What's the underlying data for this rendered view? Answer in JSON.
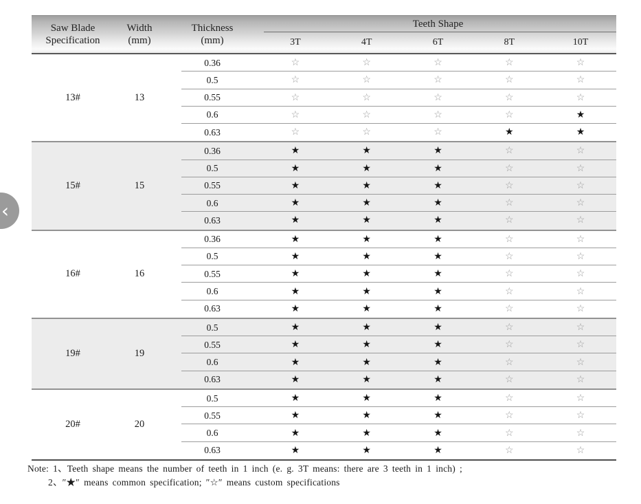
{
  "nav": {
    "prev_label": "‹"
  },
  "table": {
    "header": {
      "spec_line1": "Saw Blade",
      "spec_line2": "Specification",
      "width_line1": "Width",
      "width_line2": "(mm)",
      "thickness_line1": "Thickness",
      "thickness_line2": "(mm)",
      "teeth_shape": "Teeth Shape",
      "teeth_cols": [
        "3T",
        "4T",
        "6T",
        "8T",
        "10T"
      ]
    },
    "groups": [
      {
        "spec": "13#",
        "width": "13",
        "shaded": false,
        "rows": [
          {
            "thickness": "0.36",
            "marks": [
              "☆",
              "☆",
              "☆",
              "☆",
              "☆"
            ]
          },
          {
            "thickness": "0.5",
            "marks": [
              "☆",
              "☆",
              "☆",
              "☆",
              "☆"
            ]
          },
          {
            "thickness": "0.55",
            "marks": [
              "☆",
              "☆",
              "☆",
              "☆",
              "☆"
            ]
          },
          {
            "thickness": "0.6",
            "marks": [
              "☆",
              "☆",
              "☆",
              "☆",
              "★"
            ]
          },
          {
            "thickness": "0.63",
            "marks": [
              "☆",
              "☆",
              "☆",
              "★",
              "★"
            ]
          }
        ]
      },
      {
        "spec": "15#",
        "width": "15",
        "shaded": true,
        "rows": [
          {
            "thickness": "0.36",
            "marks": [
              "★",
              "★",
              "★",
              "☆",
              "☆"
            ]
          },
          {
            "thickness": "0.5",
            "marks": [
              "★",
              "★",
              "★",
              "☆",
              "☆"
            ]
          },
          {
            "thickness": "0.55",
            "marks": [
              "★",
              "★",
              "★",
              "☆",
              "☆"
            ]
          },
          {
            "thickness": "0.6",
            "marks": [
              "★",
              "★",
              "★",
              "☆",
              "☆"
            ]
          },
          {
            "thickness": "0.63",
            "marks": [
              "★",
              "★",
              "★",
              "☆",
              "☆"
            ]
          }
        ]
      },
      {
        "spec": "16#",
        "width": "16",
        "shaded": false,
        "rows": [
          {
            "thickness": "0.36",
            "marks": [
              "★",
              "★",
              "★",
              "☆",
              "☆"
            ]
          },
          {
            "thickness": "0.5",
            "marks": [
              "★",
              "★",
              "★",
              "☆",
              "☆"
            ]
          },
          {
            "thickness": "0.55",
            "marks": [
              "★",
              "★",
              "★",
              "☆",
              "☆"
            ]
          },
          {
            "thickness": "0.6",
            "marks": [
              "★",
              "★",
              "★",
              "☆",
              "☆"
            ]
          },
          {
            "thickness": "0.63",
            "marks": [
              "★",
              "★",
              "★",
              "☆",
              "☆"
            ]
          }
        ]
      },
      {
        "spec": "19#",
        "width": "19",
        "shaded": true,
        "rows": [
          {
            "thickness": "0.5",
            "marks": [
              "★",
              "★",
              "★",
              "☆",
              "☆"
            ]
          },
          {
            "thickness": "0.55",
            "marks": [
              "★",
              "★",
              "★",
              "☆",
              "☆"
            ]
          },
          {
            "thickness": "0.6",
            "marks": [
              "★",
              "★",
              "★",
              "☆",
              "☆"
            ]
          },
          {
            "thickness": "0.63",
            "marks": [
              "★",
              "★",
              "★",
              "☆",
              "☆"
            ]
          }
        ]
      },
      {
        "spec": "20#",
        "width": "20",
        "shaded": false,
        "rows": [
          {
            "thickness": "0.5",
            "marks": [
              "★",
              "★",
              "★",
              "☆",
              "☆"
            ]
          },
          {
            "thickness": "0.55",
            "marks": [
              "★",
              "★",
              "★",
              "☆",
              "☆"
            ]
          },
          {
            "thickness": "0.6",
            "marks": [
              "★",
              "★",
              "★",
              "☆",
              "☆"
            ]
          },
          {
            "thickness": "0.63",
            "marks": [
              "★",
              "★",
              "★",
              "☆",
              "☆"
            ]
          }
        ]
      }
    ],
    "legend": {
      "common_mark": "★",
      "custom_mark": "☆"
    }
  },
  "note": {
    "line1": "Note: 1、Teeth shape means the number of teeth in 1 inch (e. g.  3T   means:  there are 3 teeth in 1 inch) ;",
    "line2": "2、″★″ means common specification;  ″☆″  means custom specifications"
  },
  "colors": {
    "shaded_group_bg": "#ececec",
    "header_gradient_top": "#9f9f9f",
    "header_gradient_bottom": "#ececec",
    "row_separator": "#9c9c9c",
    "table_bottom_border": "#4d4d4d",
    "star_common": "#161616",
    "star_custom": "#9a9a9a",
    "nav_circle": "#9b9b9b"
  }
}
